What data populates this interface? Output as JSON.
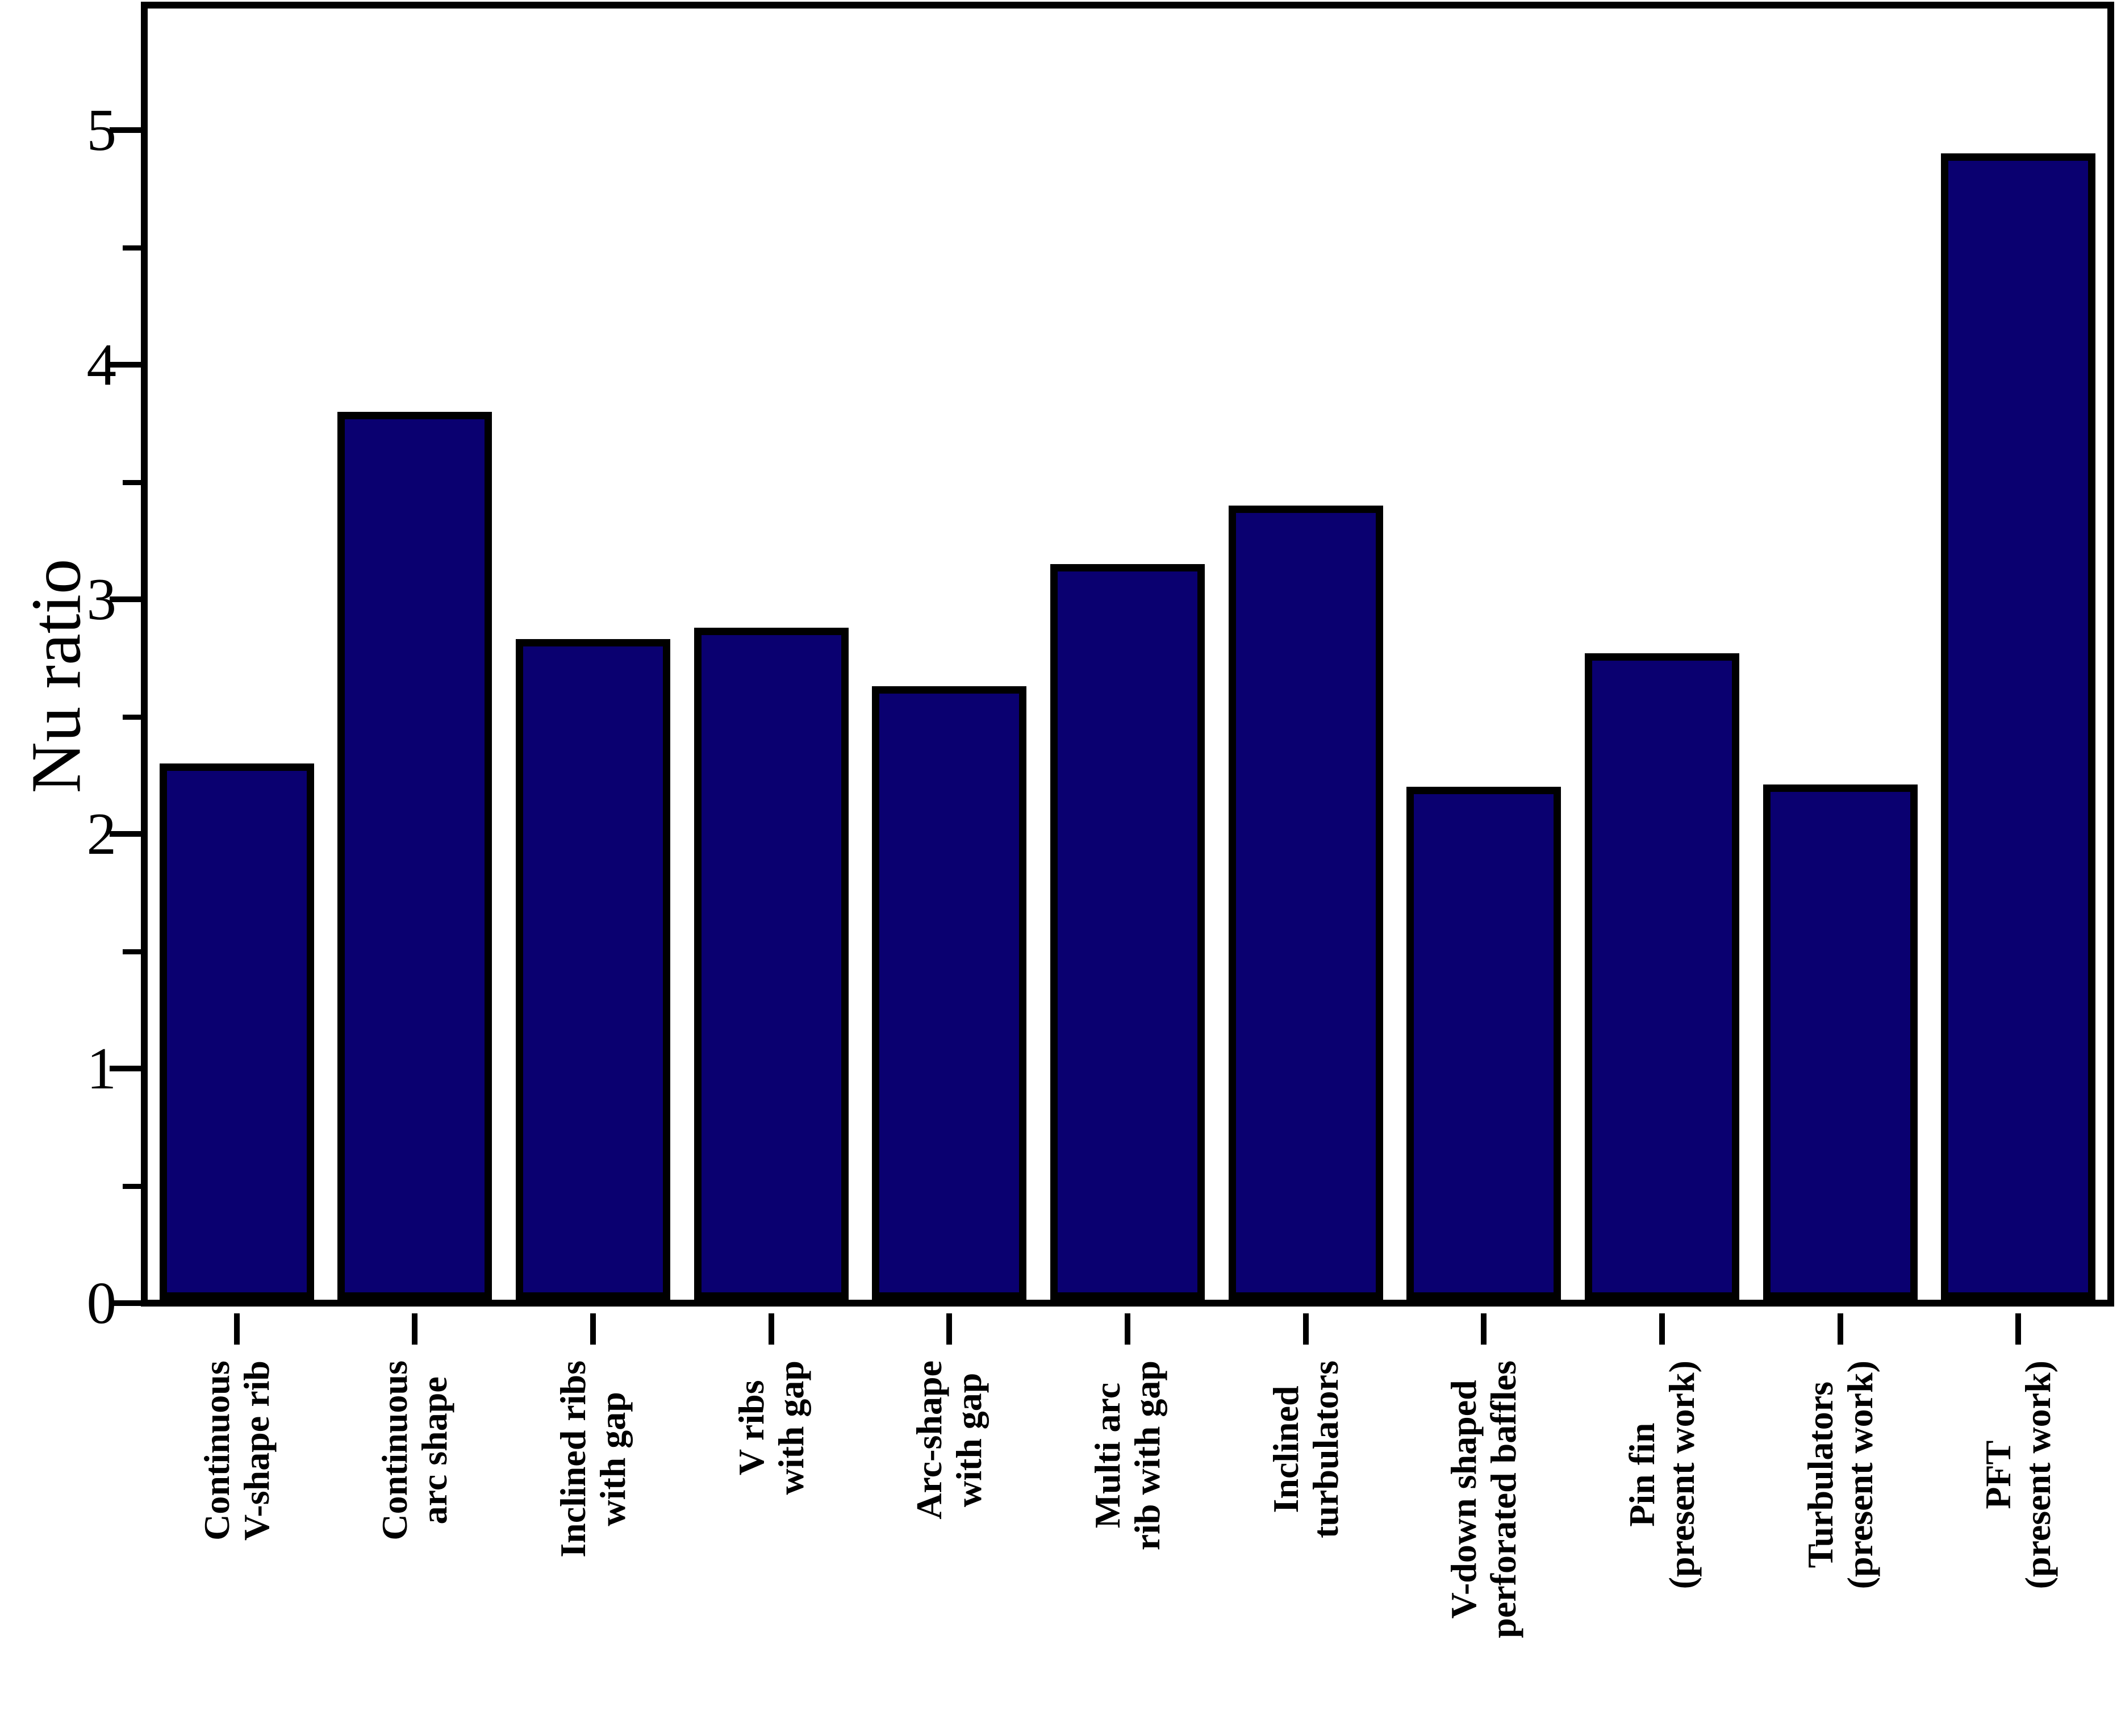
{
  "chart_data": {
    "type": "bar",
    "title": "",
    "xlabel": "",
    "ylabel": "Nu ratio",
    "categories": [
      [
        "Continuous",
        "V-shape rib"
      ],
      [
        "Continuous",
        "arc shape"
      ],
      [
        "Inclined ribs",
        "with gap"
      ],
      [
        "V ribs",
        "with gap"
      ],
      [
        "Arc-shape",
        "with gap"
      ],
      [
        "Multi arc",
        "rib with gap"
      ],
      [
        "Inclined",
        "turbulators"
      ],
      [
        "V-down shaped",
        "perforated baffles"
      ],
      [
        "Pin fin",
        "(present work)"
      ],
      [
        "Turbulators",
        "(present work)"
      ],
      [
        "PFT",
        "(present work)"
      ]
    ],
    "values": [
      2.3,
      3.8,
      2.83,
      2.88,
      2.63,
      3.15,
      3.4,
      2.2,
      2.77,
      2.21,
      4.9
    ],
    "ylim": [
      0,
      5.5
    ],
    "yticks_major": [
      0,
      1,
      2,
      3,
      4,
      5
    ],
    "yticks_minor": [
      0.5,
      1.5,
      2.5,
      3.5,
      4.5
    ],
    "grid": "off",
    "legend": "none",
    "colors": {
      "bar_fill": "#0a0070",
      "bar_border": "#000000",
      "axis": "#000000",
      "background": "#ffffff"
    }
  }
}
